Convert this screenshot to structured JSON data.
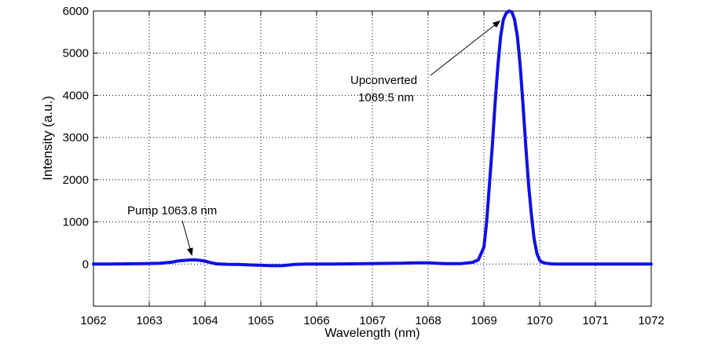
{
  "chart_data": {
    "type": "line",
    "title": "",
    "xlabel": "Wavelength (nm)",
    "ylabel": "Intensity (a.u.)",
    "xlim": [
      1062,
      1072
    ],
    "ylim": [
      -1000,
      6000
    ],
    "xticks": [
      1062,
      1063,
      1064,
      1065,
      1066,
      1067,
      1068,
      1069,
      1070,
      1071,
      1072
    ],
    "yticks": [
      0,
      1000,
      2000,
      3000,
      4000,
      5000,
      6000
    ],
    "grid": true,
    "grid_style": "dotted",
    "line_color": "#1010e8",
    "series": [
      {
        "x": [
          1062.0,
          1062.3,
          1062.6,
          1062.9,
          1063.2,
          1063.4,
          1063.5,
          1063.6,
          1063.7,
          1063.8,
          1063.9,
          1064.0,
          1064.1,
          1064.2,
          1064.4,
          1064.6,
          1064.8,
          1065.0,
          1065.2,
          1065.4,
          1065.6,
          1065.8,
          1066.0,
          1066.3,
          1066.6,
          1066.9,
          1067.2,
          1067.5,
          1067.8,
          1068.0,
          1068.3,
          1068.6,
          1068.8,
          1068.9,
          1069.0,
          1069.05,
          1069.1,
          1069.15,
          1069.2,
          1069.25,
          1069.3,
          1069.35,
          1069.4,
          1069.45,
          1069.5,
          1069.55,
          1069.6,
          1069.65,
          1069.7,
          1069.75,
          1069.8,
          1069.85,
          1069.9,
          1069.95,
          1070.0,
          1070.05,
          1070.1,
          1070.2,
          1070.3,
          1070.5,
          1070.8,
          1071.1,
          1071.4,
          1071.7,
          1072.0
        ],
        "y": [
          0,
          0,
          5,
          10,
          20,
          45,
          70,
          85,
          95,
          100,
          90,
          70,
          35,
          5,
          -5,
          -10,
          -20,
          -30,
          -40,
          -35,
          -10,
          0,
          0,
          0,
          5,
          10,
          15,
          20,
          30,
          30,
          10,
          10,
          40,
          100,
          400,
          1000,
          1900,
          2800,
          3800,
          4700,
          5400,
          5800,
          5950,
          6000,
          5980,
          5800,
          5400,
          4700,
          3800,
          2800,
          1900,
          1200,
          600,
          250,
          90,
          40,
          20,
          5,
          0,
          0,
          0,
          0,
          0,
          0,
          0
        ]
      }
    ],
    "annotations": [
      {
        "text": "Pump 1063.8 nm",
        "target": [
          1063.75,
          100
        ]
      },
      {
        "text_lines": [
          "Upconverted",
          "1069.5 nm"
        ],
        "target": [
          1069.4,
          5950
        ]
      }
    ]
  }
}
